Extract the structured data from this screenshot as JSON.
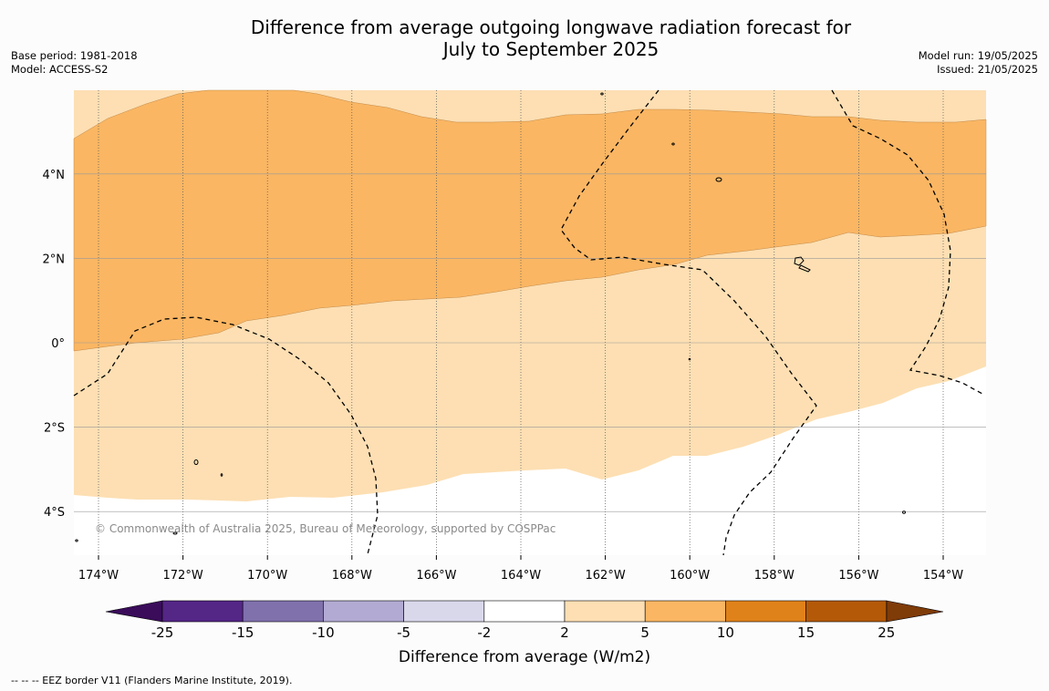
{
  "header": {
    "title_line1": "Difference from average outgoing longwave radiation forecast for",
    "title_line2": "July to September 2025",
    "base_period": "Base period: 1981-2018",
    "model": "Model: ACCESS-S2",
    "model_run": "Model run: 19/05/2025",
    "issued": "Issued: 21/05/2025"
  },
  "map": {
    "x_ticks": [
      {
        "lon": -174,
        "label": "174°W"
      },
      {
        "lon": -172,
        "label": "172°W"
      },
      {
        "lon": -170,
        "label": "170°W"
      },
      {
        "lon": -168,
        "label": "168°W"
      },
      {
        "lon": -166,
        "label": "166°W"
      },
      {
        "lon": -164,
        "label": "164°W"
      },
      {
        "lon": -162,
        "label": "162°W"
      },
      {
        "lon": -160,
        "label": "160°W"
      },
      {
        "lon": -158,
        "label": "158°W"
      },
      {
        "lon": -156,
        "label": "156°W"
      },
      {
        "lon": -154,
        "label": "154°W"
      }
    ],
    "y_ticks": [
      {
        "lat": 4,
        "label": "4°N"
      },
      {
        "lat": 2,
        "label": "2°N"
      },
      {
        "lat": 0,
        "label": "0°"
      },
      {
        "lat": -2,
        "label": "2°S"
      },
      {
        "lat": -4,
        "label": "4°S"
      }
    ],
    "copyright": "© Commonwealth of Australia 2025, Bureau of Meteorology, supported by COSPPac",
    "fill_colors": {
      "light": "#fddfb3",
      "medium": "#fab663",
      "none": "#ffffff"
    }
  },
  "colorbar": {
    "title": "Difference from average (W/m2)",
    "tick_labels": [
      "-25",
      "-15",
      "-10",
      "-5",
      "-2",
      "2",
      "5",
      "10",
      "15",
      "25"
    ],
    "colors": [
      "#3a0c5a",
      "#542686",
      "#8071ad",
      "#b2aad2",
      "#d9d8eb",
      "#ffffff",
      "#fddfb3",
      "#fab663",
      "#e0821a",
      "#b35908",
      "#7f3b08"
    ]
  },
  "footnote": "-- -- -- EEZ border V11 (Flanders Marine Institute, 2019)."
}
